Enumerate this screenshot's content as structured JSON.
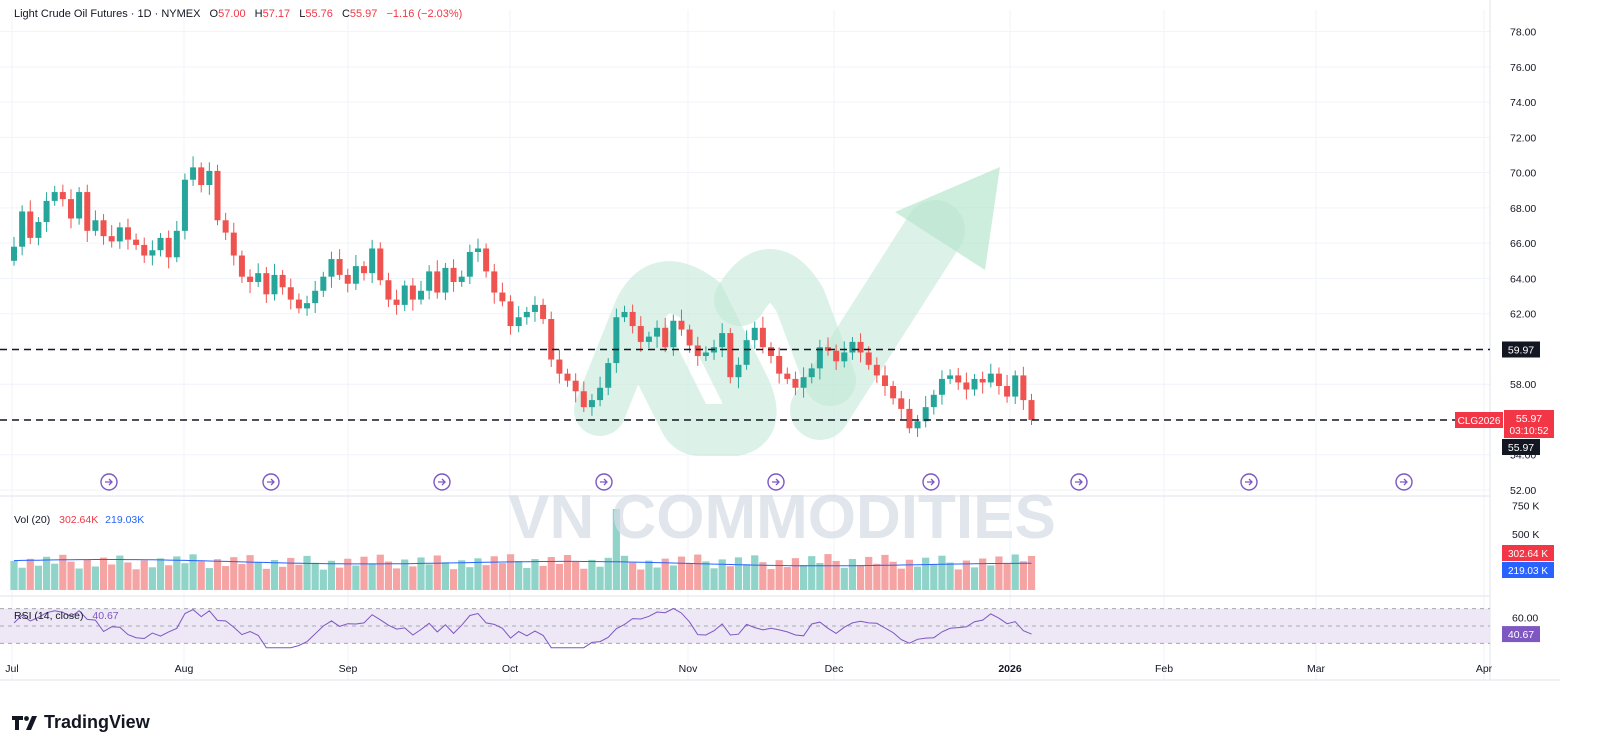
{
  "header": {
    "title": "Light Crude Oil Futures · 1D · NYMEX",
    "o_label": "O",
    "o": "57.00",
    "h_label": "H",
    "h": "57.17",
    "l_label": "L",
    "l": "55.76",
    "c_label": "C",
    "c": "55.97",
    "change": "−1.16 (−2.03%)"
  },
  "volume_pane": {
    "label": "Vol (20)",
    "value1": "302.64K",
    "value2": "219.03K",
    "axis": [
      "750 K",
      "500 K"
    ],
    "badge1": "302.64 K",
    "badge2": "219.03 K"
  },
  "rsi_pane": {
    "label": "RSI (14, close)",
    "value": "40.67",
    "axis": [
      "60.00"
    ],
    "badge": "40.67"
  },
  "price_badges": {
    "level_upper": "59.97",
    "symbol": "CLG2026",
    "last": "55.97",
    "countdown": "03:10:52",
    "level_lower": "55.97"
  },
  "watermark": "VN COMMODITIES",
  "brand": "TradingView",
  "colors": {
    "up": "#26a69a",
    "down": "#ef5350",
    "vol_up": "#8fd3c9",
    "vol_down": "#f5a3a3",
    "rsi_line": "#7e57c2",
    "rsi_band": "#ede7f6",
    "vol_ma": "#2962ff",
    "arrow": "#b8e6cf"
  },
  "chart_data": {
    "type": "candlestick",
    "symbol": "Light Crude Oil Futures",
    "timeframe": "1D",
    "exchange": "NYMEX",
    "ylim": [
      52,
      79
    ],
    "y_ticks": [
      "78.00",
      "76.00",
      "74.00",
      "72.00",
      "70.00",
      "68.00",
      "66.00",
      "64.00",
      "62.00",
      "60.00",
      "58.00",
      "56.00",
      "54.00",
      "52.00"
    ],
    "x_ticks": [
      "Jul",
      "Aug",
      "Sep",
      "Oct",
      "Nov",
      "Dec",
      "2026",
      "Feb",
      "Mar",
      "Apr"
    ],
    "horizontal_levels": [
      59.97,
      55.97
    ],
    "last_ohlc": {
      "open": 57.0,
      "high": 57.17,
      "low": 55.76,
      "close": 55.97
    },
    "closes": [
      65.0,
      65.8,
      67.8,
      66.3,
      67.2,
      68.4,
      68.9,
      68.5,
      67.4,
      68.9,
      66.7,
      67.3,
      66.4,
      66.1,
      66.9,
      66.2,
      65.9,
      65.3,
      65.6,
      66.3,
      65.2,
      66.7,
      69.6,
      70.3,
      69.3,
      70.1,
      67.3,
      66.6,
      65.3,
      64.1,
      63.8,
      64.3,
      63.1,
      64.2,
      63.5,
      62.8,
      62.3,
      62.6,
      63.3,
      64.1,
      65.1,
      64.2,
      63.7,
      64.7,
      64.3,
      65.7,
      63.9,
      62.8,
      62.5,
      63.6,
      62.8,
      63.3,
      64.4,
      63.2,
      64.6,
      63.8,
      64.1,
      65.5,
      65.7,
      64.4,
      63.2,
      62.7,
      61.3,
      61.8,
      62.1,
      62.5,
      61.7,
      59.4,
      58.6,
      58.2,
      57.6,
      56.7,
      57.1,
      57.8,
      59.2,
      61.8,
      62.1,
      61.3,
      60.4,
      60.7,
      61.2,
      60.1,
      61.6,
      61.1,
      60.2,
      59.6,
      59.8,
      60.1,
      60.9,
      58.4,
      59.1,
      60.5,
      61.2,
      60.1,
      59.6,
      58.6,
      58.3,
      57.8,
      58.4,
      58.9,
      60.1,
      59.9,
      59.3,
      59.8,
      60.4,
      59.8,
      59.1,
      58.5,
      57.9,
      57.2,
      56.6,
      55.5,
      55.9,
      56.7,
      57.4,
      58.3,
      58.5,
      58.1,
      57.7,
      58.3,
      58.1,
      58.6,
      57.9,
      57.3,
      58.5,
      57.1,
      55.97
    ],
    "volume_ylim": [
      0,
      800000
    ],
    "rsi_ylim": [
      20,
      80
    ],
    "rsi_last": 40.67,
    "volume_last": 302640,
    "volume_ma_last": 219030
  }
}
